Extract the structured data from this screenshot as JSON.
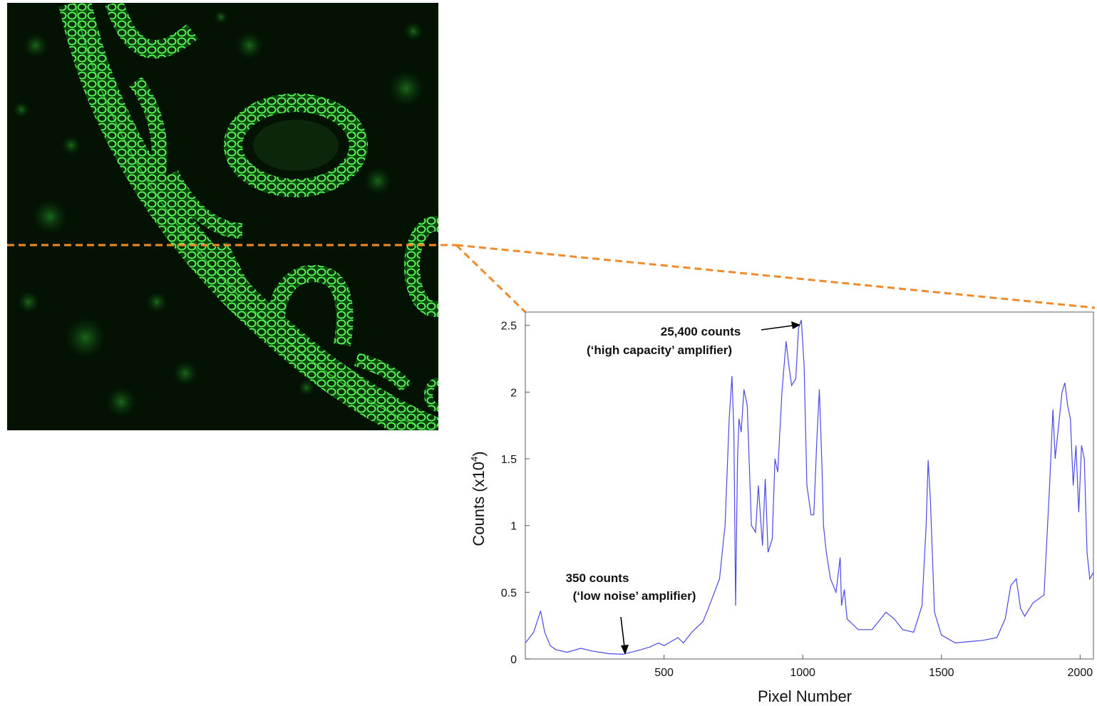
{
  "figure": {
    "image_kind": "fluorescence micrograph",
    "guide_color": "#f08a2b"
  },
  "chart_data": {
    "type": "line",
    "xlabel": "Pixel Number",
    "ylabel_base": "Counts (x10",
    "ylabel_exp": "4",
    "ylabel_close": ")",
    "xlim": [
      0,
      2048
    ],
    "ylim": [
      0,
      2.6
    ],
    "x_ticks": [
      500,
      1000,
      1500,
      2000
    ],
    "x_tick_labels": [
      "500",
      "1000",
      "1500",
      "2000"
    ],
    "y_ticks": [
      0,
      0.5,
      1,
      1.5,
      2,
      2.5
    ],
    "y_tick_labels": [
      "0",
      "0.5",
      "1",
      "1.5",
      "2",
      "2.5"
    ],
    "grid": false,
    "line_color": "#4a4ae8",
    "series": [
      {
        "x": [
          0,
          30,
          55,
          70,
          90,
          110,
          150,
          200,
          240,
          270,
          300,
          350,
          400,
          450,
          480,
          500,
          550,
          570,
          600,
          640,
          660,
          700,
          720,
          735,
          745,
          752,
          758,
          765,
          770,
          778,
          788,
          800,
          815,
          830,
          840,
          855,
          865,
          875,
          890,
          900,
          910,
          925,
          940,
          950,
          960,
          975,
          985,
          995,
          1005,
          1015,
          1030,
          1040,
          1050,
          1060,
          1070,
          1075,
          1085,
          1100,
          1120,
          1135,
          1140,
          1150,
          1160,
          1200,
          1250,
          1300,
          1330,
          1360,
          1400,
          1430,
          1445,
          1452,
          1460,
          1475,
          1500,
          1550,
          1600,
          1650,
          1700,
          1730,
          1750,
          1770,
          1785,
          1800,
          1830,
          1870,
          1890,
          1902,
          1910,
          1920,
          1935,
          1945,
          1955,
          1965,
          1975,
          1985,
          1995,
          2005,
          2015,
          2025,
          2035,
          2048
        ],
        "y": [
          0.12,
          0.2,
          0.36,
          0.2,
          0.1,
          0.07,
          0.05,
          0.08,
          0.06,
          0.05,
          0.04,
          0.035,
          0.06,
          0.09,
          0.12,
          0.1,
          0.16,
          0.12,
          0.2,
          0.28,
          0.38,
          0.6,
          1.0,
          1.8,
          2.12,
          1.7,
          0.4,
          1.5,
          1.8,
          1.7,
          2.02,
          1.9,
          1.0,
          0.95,
          1.3,
          0.85,
          1.35,
          0.8,
          0.9,
          1.5,
          1.4,
          2.0,
          2.38,
          2.2,
          2.05,
          2.1,
          2.48,
          2.54,
          2.2,
          1.3,
          1.08,
          1.08,
          1.6,
          2.02,
          1.4,
          1.0,
          0.8,
          0.6,
          0.5,
          0.76,
          0.4,
          0.52,
          0.3,
          0.22,
          0.22,
          0.35,
          0.3,
          0.22,
          0.2,
          0.4,
          1.0,
          1.49,
          1.2,
          0.35,
          0.18,
          0.12,
          0.13,
          0.14,
          0.16,
          0.3,
          0.55,
          0.6,
          0.38,
          0.32,
          0.42,
          0.48,
          1.3,
          1.87,
          1.5,
          1.7,
          2.0,
          2.07,
          1.9,
          1.8,
          1.3,
          1.6,
          1.1,
          1.6,
          1.5,
          0.8,
          0.6,
          0.65
        ]
      }
    ],
    "annotations": [
      {
        "line1": "25,400 counts",
        "line2": "(‘high capacity’ amplifier)",
        "x": 1000,
        "y": 2.54
      },
      {
        "line1": "350 counts",
        "line2": "(‘low noise’ amplifier)",
        "x": 350,
        "y": 0.035
      }
    ]
  }
}
